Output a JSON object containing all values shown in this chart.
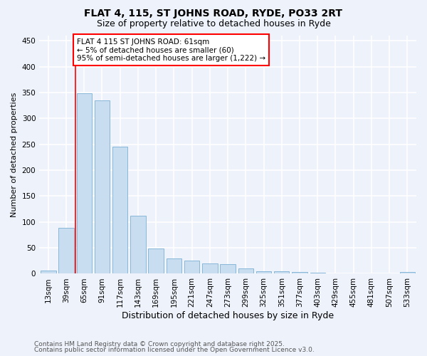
{
  "title_line1": "FLAT 4, 115, ST JOHNS ROAD, RYDE, PO33 2RT",
  "title_line2": "Size of property relative to detached houses in Ryde",
  "xlabel": "Distribution of detached houses by size in Ryde",
  "ylabel": "Number of detached properties",
  "categories": [
    "13sqm",
    "39sqm",
    "65sqm",
    "91sqm",
    "117sqm",
    "143sqm",
    "169sqm",
    "195sqm",
    "221sqm",
    "247sqm",
    "273sqm",
    "299sqm",
    "325sqm",
    "351sqm",
    "377sqm",
    "403sqm",
    "429sqm",
    "455sqm",
    "481sqm",
    "507sqm",
    "533sqm"
  ],
  "values": [
    6,
    88,
    348,
    335,
    245,
    112,
    49,
    30,
    25,
    20,
    19,
    10,
    5,
    5,
    4,
    2,
    1,
    1,
    0,
    1,
    3
  ],
  "bar_color": "#c8ddf0",
  "bar_edge_color": "#7aafd4",
  "bar_alpha": 1.0,
  "bar_width": 0.85,
  "red_line_index": 2,
  "ylim": [
    0,
    460
  ],
  "yticks": [
    0,
    50,
    100,
    150,
    200,
    250,
    300,
    350,
    400,
    450
  ],
  "annotation_text": "FLAT 4 115 ST JOHNS ROAD: 61sqm\n← 5% of detached houses are smaller (60)\n95% of semi-detached houses are larger (1,222) →",
  "annotation_box_color": "white",
  "annotation_box_edge": "red",
  "annotation_fontsize": 7.5,
  "footnote1": "Contains HM Land Registry data © Crown copyright and database right 2025.",
  "footnote2": "Contains public sector information licensed under the Open Government Licence v3.0.",
  "background_color": "#eef2fb",
  "grid_color": "white",
  "title_fontsize": 10,
  "subtitle_fontsize": 9,
  "xlabel_fontsize": 9,
  "ylabel_fontsize": 8,
  "tick_fontsize": 7.5
}
